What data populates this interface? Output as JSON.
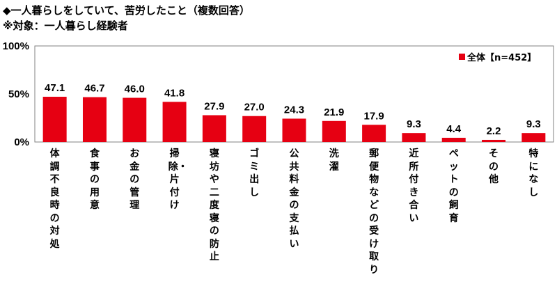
{
  "title_line1": "◆一人暮らしをしていて、苦労したこと（複数回答）",
  "title_line2": "※対象：一人暮らし経験者",
  "chart_data": {
    "type": "bar",
    "categories": [
      "体調不良時の対処",
      "食事の用意",
      "お金の管理",
      "掃除・片付け",
      "寝坊や二度寝の防止",
      "ゴミ出し",
      "公共料金の支払い",
      "洗濯",
      "郵便物などの受け取り",
      "近所付き合い",
      "ペットの飼育",
      "その他",
      "特になし"
    ],
    "series": [
      {
        "name": "全体【n=452】",
        "color": "#e60012",
        "values": [
          47.1,
          46.7,
          46.0,
          41.8,
          27.9,
          27.0,
          24.3,
          21.9,
          17.9,
          9.3,
          4.4,
          2.2,
          9.3
        ]
      }
    ],
    "data_labels": [
      "47.1",
      "46.7",
      "46.0",
      "41.8",
      "27.9",
      "27.0",
      "24.3",
      "21.9",
      "17.9",
      "9.3",
      "4.4",
      "2.2",
      "9.3"
    ],
    "y_ticks": [
      "100%",
      "50%",
      "0%"
    ],
    "ylim": [
      0,
      100
    ],
    "legend_position": "top-right",
    "grid": false
  }
}
